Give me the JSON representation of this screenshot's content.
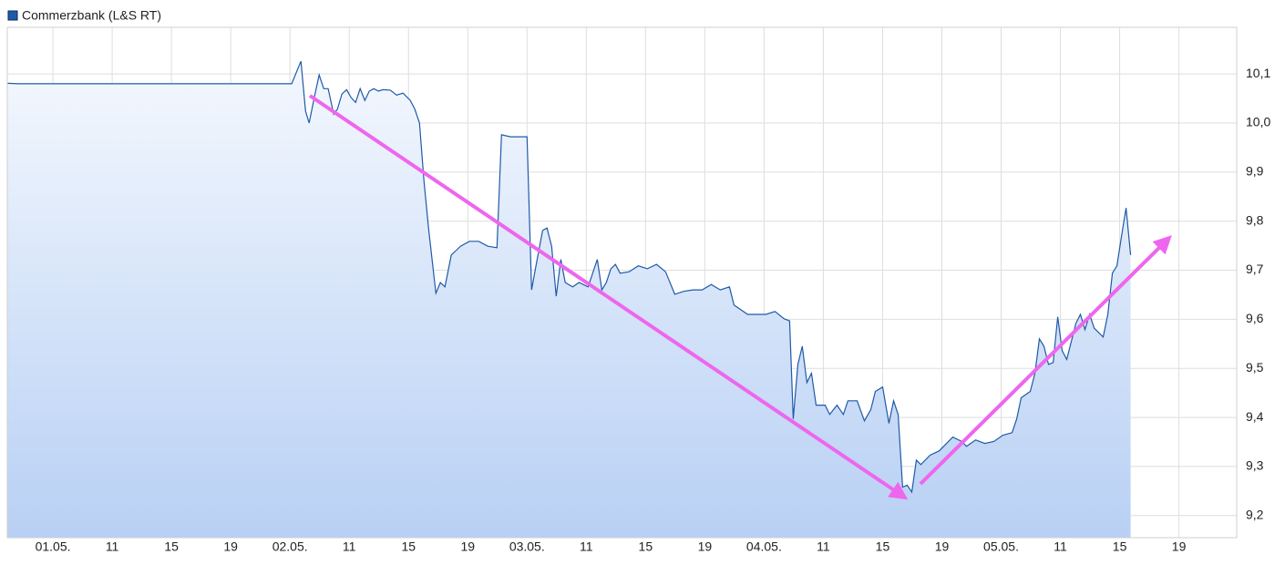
{
  "chart_data": {
    "type": "area",
    "series": [
      {
        "name": "Commerzbank (L&S RT)",
        "color": "#1f5aa8",
        "x": [
          -3.08,
          -2.34,
          16.12,
          16.74,
          17.05,
          17.29,
          17.66,
          17.97,
          18.28,
          18.58,
          18.95,
          19.2,
          19.51,
          19.82,
          20.12,
          20.43,
          20.74,
          21.05,
          21.35,
          21.66,
          21.97,
          22.28,
          22.77,
          23.2,
          23.63,
          24.12,
          24.43,
          24.74,
          25.05,
          25.35,
          25.85,
          26.15,
          26.46,
          26.89,
          27.2,
          27.51,
          28.12,
          28.74,
          29.35,
          29.97,
          30.28,
          30.89,
          32.0,
          32.31,
          32.62,
          33.05,
          33.35,
          33.66,
          33.97,
          34.28,
          34.58,
          35.08,
          35.51,
          36.12,
          36.74,
          37.05,
          37.35,
          37.66,
          37.97,
          38.28,
          38.89,
          39.51,
          40.12,
          40.74,
          41.35,
          41.97,
          42.58,
          43.2,
          43.82,
          44.43,
          45.05,
          45.66,
          45.97,
          46.89,
          48.12,
          48.74,
          49.35,
          49.72,
          49.97,
          50.28,
          50.58,
          50.89,
          51.2,
          51.51,
          52.12,
          52.43,
          52.92,
          53.35,
          53.66,
          54.28,
          54.77,
          55.2,
          55.51,
          56.0,
          56.43,
          56.74,
          57.05,
          57.35,
          57.66,
          57.97,
          58.28,
          58.58,
          59.2,
          59.82,
          60.74,
          61.35,
          61.66,
          62.28,
          62.89,
          63.51,
          64.12,
          64.74,
          65.05,
          65.35,
          65.97,
          66.28,
          66.58,
          66.89,
          67.2,
          67.51,
          67.82,
          68.12,
          68.43,
          69.05,
          69.35,
          69.66,
          69.97,
          70.28,
          70.89,
          71.2,
          71.51,
          71.82,
          72.12,
          72.43,
          72.74
        ],
        "values": [
          10.081,
          10.08,
          10.08,
          10.126,
          10.024,
          10.0,
          10.055,
          10.098,
          10.07,
          10.07,
          10.018,
          10.028,
          10.059,
          10.068,
          10.052,
          10.042,
          10.07,
          10.046,
          10.065,
          10.07,
          10.065,
          10.068,
          10.067,
          10.057,
          10.061,
          10.046,
          10.028,
          10.0,
          9.88,
          9.786,
          9.653,
          9.675,
          9.666,
          9.731,
          9.74,
          9.749,
          9.759,
          9.759,
          9.749,
          9.746,
          9.976,
          9.972,
          9.972,
          9.66,
          9.712,
          9.781,
          9.786,
          9.749,
          9.647,
          9.722,
          9.675,
          9.666,
          9.675,
          9.666,
          9.722,
          9.66,
          9.675,
          9.703,
          9.712,
          9.694,
          9.697,
          9.709,
          9.703,
          9.712,
          9.697,
          9.651,
          9.657,
          9.66,
          9.66,
          9.671,
          9.66,
          9.666,
          9.629,
          9.61,
          9.61,
          9.616,
          9.601,
          9.597,
          9.397,
          9.508,
          9.545,
          9.471,
          9.49,
          9.425,
          9.425,
          9.406,
          9.425,
          9.406,
          9.434,
          9.434,
          9.393,
          9.416,
          9.453,
          9.462,
          9.388,
          9.434,
          9.406,
          9.258,
          9.262,
          9.248,
          9.313,
          9.304,
          9.323,
          9.332,
          9.36,
          9.351,
          9.341,
          9.354,
          9.347,
          9.351,
          9.364,
          9.369,
          9.397,
          9.44,
          9.453,
          9.49,
          9.56,
          9.545,
          9.508,
          9.512,
          9.605,
          9.536,
          9.518,
          9.592,
          9.61,
          9.579,
          9.61,
          9.582,
          9.564,
          9.61,
          9.694,
          9.709,
          9.768,
          9.827,
          9.731
        ]
      }
    ],
    "xlim": [
      -3.08,
      79.9
    ],
    "xticks": [
      {
        "value": 0,
        "label": "01.05."
      },
      {
        "value": 4,
        "label": "11"
      },
      {
        "value": 8,
        "label": "15"
      },
      {
        "value": 12,
        "label": "19"
      },
      {
        "value": 16,
        "label": "02.05."
      },
      {
        "value": 20,
        "label": "11"
      },
      {
        "value": 24,
        "label": "15"
      },
      {
        "value": 28,
        "label": "19"
      },
      {
        "value": 32,
        "label": "03.05."
      },
      {
        "value": 36,
        "label": "11"
      },
      {
        "value": 40,
        "label": "15"
      },
      {
        "value": 44,
        "label": "19"
      },
      {
        "value": 48,
        "label": "04.05."
      },
      {
        "value": 52,
        "label": "11"
      },
      {
        "value": 56,
        "label": "15"
      },
      {
        "value": 60,
        "label": "19"
      },
      {
        "value": 64,
        "label": "05.05."
      },
      {
        "value": 68,
        "label": "11"
      },
      {
        "value": 72,
        "label": "15"
      },
      {
        "value": 76,
        "label": "19"
      }
    ],
    "ylim": [
      9.155,
      10.195
    ],
    "yticks": [
      {
        "value": 9.2,
        "label": "9,2"
      },
      {
        "value": 9.3,
        "label": "9,3"
      },
      {
        "value": 9.4,
        "label": "9,4"
      },
      {
        "value": 9.5,
        "label": "9,5"
      },
      {
        "value": 9.6,
        "label": "9,6"
      },
      {
        "value": 9.7,
        "label": "9,7"
      },
      {
        "value": 9.8,
        "label": "9,8"
      },
      {
        "value": 9.9,
        "label": "9,9"
      },
      {
        "value": 10.0,
        "label": "10,0"
      },
      {
        "value": 10.1,
        "label": "10,1"
      }
    ],
    "grid": true,
    "legend": "top-left"
  }
}
